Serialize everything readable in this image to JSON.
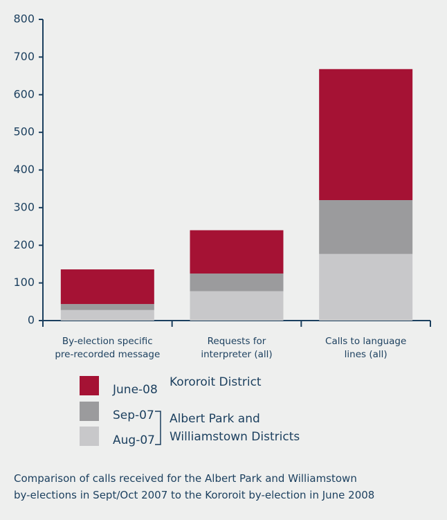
{
  "chart_data": {
    "type": "bar",
    "stacked": true,
    "categories": [
      "By-election specific\npre-recorded message",
      "Requests for\ninterpreter (all)",
      "Calls to language\nlines (all)"
    ],
    "series": [
      {
        "name": "Aug-07",
        "color": "#c8c8ca",
        "values": [
          28,
          78,
          177
        ]
      },
      {
        "name": "Sep-07",
        "color": "#9b9b9d",
        "values": [
          16,
          47,
          143
        ]
      },
      {
        "name": "June-08",
        "color": "#a51234",
        "values": [
          92,
          115,
          348
        ]
      }
    ],
    "ylim": [
      0,
      800
    ],
    "yticks": [
      0,
      100,
      200,
      300,
      400,
      500,
      600,
      700,
      800
    ],
    "grid": false,
    "annotations": [
      "Kororoit District",
      "Albert Park and\nWilliamstown Districts"
    ],
    "caption": "Comparison of calls received for the Albert Park and Williamstown\nby-elections in Sept/Oct 2007 to the Kororoit by-election in June 2008"
  }
}
